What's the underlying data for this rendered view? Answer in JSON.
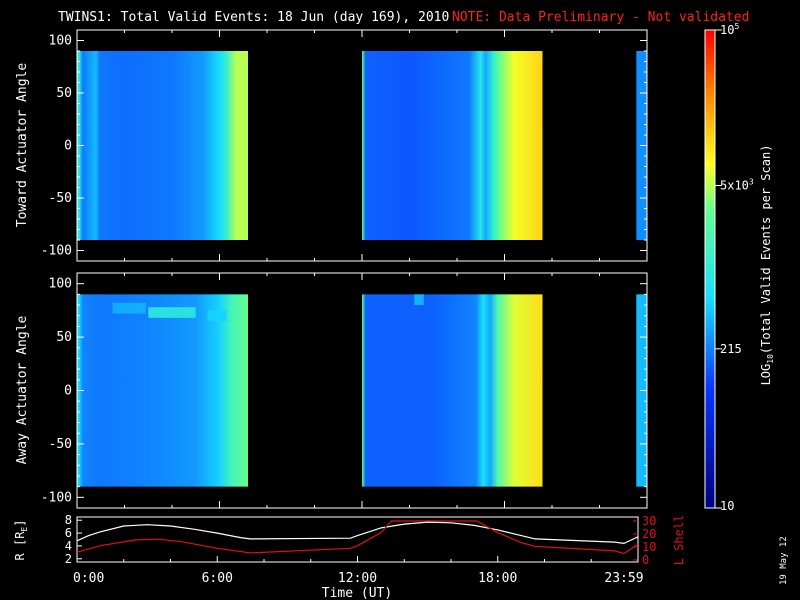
{
  "header": {
    "title": "TWINS1: Total Valid Events: 18 Jun (day 169), 2010",
    "note": "NOTE: Data Preliminary - Not validated"
  },
  "stamp": "19 May 12",
  "colors": {
    "background": "#000000",
    "axes": "#ffffff",
    "note": "#ff2020",
    "rcurve": "#ffffff",
    "lshell": "#e01010"
  },
  "chart_data": [
    {
      "type": "heatmap",
      "name": "toward-panel",
      "ylabel": "Toward Actuator Angle",
      "yticks": [
        100,
        50,
        0,
        -50,
        -100
      ],
      "ylim": [
        -110,
        110
      ],
      "xlim": [
        0,
        24
      ],
      "angle_range": [
        -90,
        90
      ],
      "data_blocks": [
        {
          "t_start": 0.0,
          "t_end": 7.2
        },
        {
          "t_start": 12.0,
          "t_end": 19.6
        },
        {
          "t_start": 23.55,
          "t_end": 23.99
        }
      ],
      "time_columns": [
        {
          "t": 0.0,
          "log": 3.2
        },
        {
          "t": 0.1,
          "log": 2.9
        },
        {
          "t": 0.25,
          "log": 2.3
        },
        {
          "t": 0.8,
          "log": 2.6
        },
        {
          "t": 0.95,
          "log": 2.3
        },
        {
          "t": 2.0,
          "log": 2.25
        },
        {
          "t": 4.0,
          "log": 2.3
        },
        {
          "t": 5.3,
          "log": 2.45
        },
        {
          "t": 6.0,
          "log": 2.75
        },
        {
          "t": 6.3,
          "log": 3.1
        },
        {
          "t": 6.7,
          "log": 3.7
        },
        {
          "t": 7.2,
          "log": 3.7
        },
        {
          "t": 12.0,
          "log": 3.5
        },
        {
          "t": 12.15,
          "log": 2.2
        },
        {
          "t": 14.0,
          "log": 2.15
        },
        {
          "t": 16.5,
          "log": 2.3
        },
        {
          "t": 17.0,
          "log": 2.9
        },
        {
          "t": 17.2,
          "log": 2.5
        },
        {
          "t": 17.5,
          "log": 3.0
        },
        {
          "t": 17.8,
          "log": 3.5
        },
        {
          "t": 18.4,
          "log": 3.85
        },
        {
          "t": 19.6,
          "log": 4.1
        },
        {
          "t": 23.55,
          "log": 2.4
        },
        {
          "t": 23.99,
          "log": 2.4
        }
      ]
    },
    {
      "type": "heatmap",
      "name": "away-panel",
      "ylabel": "Away Actuator Angle",
      "yticks": [
        100,
        50,
        0,
        -50,
        -100
      ],
      "ylim": [
        -110,
        110
      ],
      "xlim": [
        0,
        24
      ],
      "angle_range": [
        -90,
        90
      ],
      "data_blocks": [
        {
          "t_start": 0.0,
          "t_end": 7.2
        },
        {
          "t_start": 12.0,
          "t_end": 19.6
        },
        {
          "t_start": 23.55,
          "t_end": 23.99
        }
      ],
      "time_columns": [
        {
          "t": 0.0,
          "log": 3.0
        },
        {
          "t": 0.1,
          "log": 2.7
        },
        {
          "t": 0.25,
          "log": 2.35
        },
        {
          "t": 1.0,
          "log": 2.3
        },
        {
          "t": 3.0,
          "log": 2.35
        },
        {
          "t": 5.0,
          "log": 2.45
        },
        {
          "t": 6.0,
          "log": 2.7
        },
        {
          "t": 6.5,
          "log": 3.2
        },
        {
          "t": 7.2,
          "log": 3.5
        },
        {
          "t": 12.0,
          "log": 3.5
        },
        {
          "t": 12.15,
          "log": 2.2
        },
        {
          "t": 15.0,
          "log": 2.2
        },
        {
          "t": 16.8,
          "log": 2.35
        },
        {
          "t": 17.1,
          "log": 2.8
        },
        {
          "t": 17.4,
          "log": 2.5
        },
        {
          "t": 17.7,
          "log": 3.3
        },
        {
          "t": 18.4,
          "log": 3.8
        },
        {
          "t": 19.6,
          "log": 4.05
        },
        {
          "t": 23.55,
          "log": 2.6
        },
        {
          "t": 23.99,
          "log": 2.6
        }
      ],
      "features": [
        {
          "t_start": 1.5,
          "t_end": 2.9,
          "angle": 77,
          "log": 2.55
        },
        {
          "t_start": 3.0,
          "t_end": 5.0,
          "angle": 73,
          "log": 3.0
        },
        {
          "t_start": 5.5,
          "t_end": 6.3,
          "angle": 70,
          "log": 2.7
        },
        {
          "t_start": 14.2,
          "t_end": 14.6,
          "angle": 85,
          "log": 2.6
        }
      ]
    },
    {
      "type": "line",
      "name": "orbit-panel",
      "ylabel": "R [R",
      "ylabel_sub": "E",
      "ylabel_close": "]",
      "ylabel_right": "L Shell",
      "xlabel": "Time (UT)",
      "xlim": [
        0,
        24
      ],
      "ylim": [
        1.5,
        8.5
      ],
      "yticks": [
        2,
        4,
        6,
        8
      ],
      "ylim_right": [
        0,
        30
      ],
      "yticks_right": [
        0,
        10,
        20,
        30
      ],
      "xtick_labels": [
        {
          "t": 0.5,
          "label": "0:00"
        },
        {
          "t": 6.0,
          "label": "6:00"
        },
        {
          "t": 12.0,
          "label": "12:00"
        },
        {
          "t": 18.0,
          "label": "18:00"
        },
        {
          "t": 23.4,
          "label": "23:59"
        }
      ],
      "series": [
        {
          "name": "R",
          "axis": "left",
          "points": [
            [
              0.0,
              4.8
            ],
            [
              0.5,
              5.6
            ],
            [
              1.0,
              6.2
            ],
            [
              2.0,
              7.1
            ],
            [
              3.0,
              7.3
            ],
            [
              4.0,
              7.1
            ],
            [
              5.0,
              6.6
            ],
            [
              6.0,
              6.0
            ],
            [
              7.0,
              5.3
            ],
            [
              7.4,
              5.1
            ],
            [
              11.7,
              5.2
            ],
            [
              12.0,
              5.6
            ],
            [
              13.0,
              6.8
            ],
            [
              14.0,
              7.4
            ],
            [
              15.0,
              7.7
            ],
            [
              16.0,
              7.6
            ],
            [
              17.0,
              7.2
            ],
            [
              18.0,
              6.5
            ],
            [
              19.0,
              5.6
            ],
            [
              19.6,
              5.1
            ],
            [
              23.0,
              4.6
            ],
            [
              23.4,
              4.4
            ],
            [
              23.99,
              5.4
            ]
          ]
        },
        {
          "name": "L Shell",
          "axis": "right",
          "points": [
            [
              0.0,
              6.0
            ],
            [
              1.0,
              11.0
            ],
            [
              2.5,
              15.5
            ],
            [
              3.5,
              16.0
            ],
            [
              4.5,
              14.0
            ],
            [
              6.0,
              9.0
            ],
            [
              7.4,
              5.5
            ],
            [
              11.7,
              9.0
            ],
            [
              12.0,
              11.0
            ],
            [
              13.0,
              21.0
            ],
            [
              13.45,
              30.0
            ],
            [
              17.1,
              30.0
            ],
            [
              18.0,
              21.0
            ],
            [
              19.0,
              13.5
            ],
            [
              19.6,
              10.5
            ],
            [
              23.0,
              7.0
            ],
            [
              23.4,
              5.0
            ],
            [
              23.99,
              12.0
            ]
          ]
        }
      ]
    },
    {
      "type": "heatmap",
      "name": "colorbar",
      "scale": "log",
      "range": [
        10,
        100000
      ],
      "ylabel": "LOG",
      "ylabel_sub": "10",
      "ylabel_rest": "(Total Valid Events per Scan)",
      "ticks": [
        {
          "value": 10,
          "log": 1.0,
          "label": "10"
        },
        {
          "value": 215,
          "log": 2.332,
          "label": "215"
        },
        {
          "value": 5000,
          "log": 3.699,
          "label_main": "5x10",
          "label_sup": "3"
        },
        {
          "value": 100000,
          "log": 5.0,
          "label_main": "10",
          "label_sup": "5"
        }
      ]
    }
  ]
}
